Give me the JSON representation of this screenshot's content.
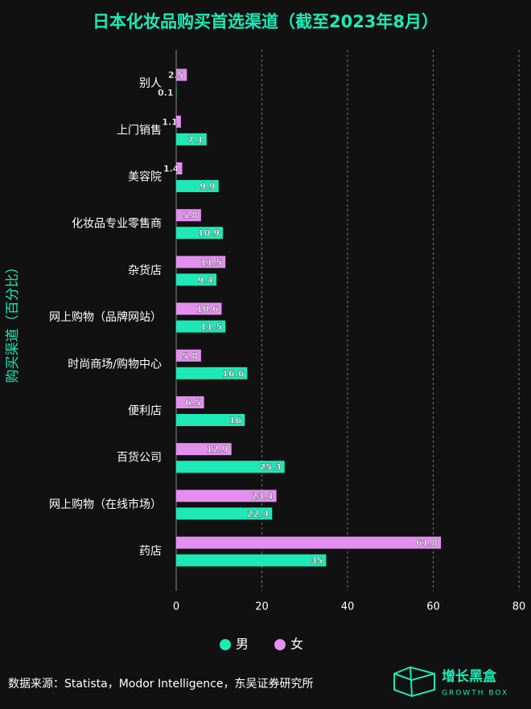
{
  "chart_data": {
    "type": "hbar",
    "title": "日本化妆品购买首选渠道（截至2023年8月）",
    "y_label": "购买渠道（百分比）",
    "categories": [
      "别人",
      "上门销售",
      "美容院",
      "化妆品专业零售商",
      "杂货店",
      "网上购物（品牌网站）",
      "时尚商场/购物中心",
      "便利店",
      "百货公司",
      "网上购物（在线市场）",
      "药店"
    ],
    "series": [
      {
        "name": "男",
        "color": "#1de9b6",
        "values": [
          0.1,
          7.1,
          9.9,
          10.9,
          9.4,
          11.5,
          16.6,
          16,
          25.3,
          22.4,
          35
        ]
      },
      {
        "name": "女",
        "color": "#e38ff0",
        "values": [
          2.5,
          1.1,
          1.4,
          5.8,
          11.5,
          10.6,
          5.8,
          6.5,
          12.9,
          23.4,
          61.8
        ]
      }
    ],
    "xlim": [
      0,
      80
    ],
    "xticks": [
      0,
      20,
      40,
      60,
      80
    ],
    "grid": true
  },
  "source": "数据来源：Statista，Modor Intelligence，东吴证券研究所",
  "logo": {
    "title": "增长黑盒",
    "subtitle": "GROWTH BOX"
  }
}
